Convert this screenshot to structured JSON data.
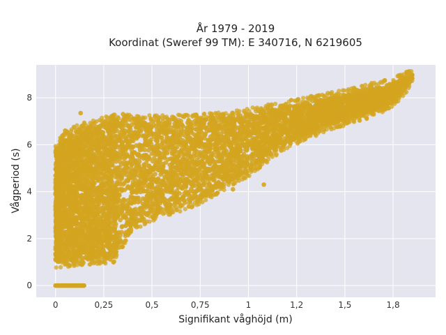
{
  "chart_data": {
    "type": "scatter",
    "title_lines": [
      "År 1979 - 2019",
      "Koordinat (Sweref 99 TM): E 340716, N 6219605"
    ],
    "xlabel": "Signifikant våghöjd (m)",
    "ylabel": "Vågperiod (s)",
    "xlim": [
      -0.1,
      1.97
    ],
    "ylim": [
      -0.5,
      9.4
    ],
    "x_ticks": [
      {
        "value": 0,
        "label": "0"
      },
      {
        "value": 0.25,
        "label": "0,25"
      },
      {
        "value": 0.5,
        "label": "0,5"
      },
      {
        "value": 0.75,
        "label": "0,75"
      },
      {
        "value": 1,
        "label": "1"
      },
      {
        "value": 1.25,
        "label": "1,2"
      },
      {
        "value": 1.5,
        "label": "1,5"
      },
      {
        "value": 1.75,
        "label": "1,8"
      }
    ],
    "y_ticks": [
      {
        "value": 0,
        "label": "0"
      },
      {
        "value": 2,
        "label": "2"
      },
      {
        "value": 4,
        "label": "4"
      },
      {
        "value": 6,
        "label": "6"
      },
      {
        "value": 8,
        "label": "8"
      }
    ],
    "grid": true,
    "marker_color": "#D4A520",
    "background_color": "#E5E5EF",
    "envelope": {
      "upper": [
        [
          0.0,
          5.8
        ],
        [
          0.05,
          6.3
        ],
        [
          0.1,
          6.6
        ],
        [
          0.2,
          6.8
        ],
        [
          0.3,
          7.05
        ],
        [
          0.5,
          7.0
        ],
        [
          0.75,
          7.05
        ],
        [
          1.0,
          7.3
        ],
        [
          1.25,
          7.7
        ],
        [
          1.5,
          8.1
        ],
        [
          1.75,
          8.6
        ],
        [
          1.85,
          9.0
        ]
      ],
      "lower": [
        [
          0.0,
          1.0
        ],
        [
          0.3,
          1.2
        ],
        [
          0.4,
          2.6
        ],
        [
          0.5,
          3.0
        ],
        [
          0.75,
          3.7
        ],
        [
          1.0,
          4.9
        ],
        [
          1.2,
          6.1
        ],
        [
          1.4,
          6.8
        ],
        [
          1.6,
          7.3
        ],
        [
          1.75,
          7.8
        ],
        [
          1.85,
          8.8
        ]
      ]
    },
    "zero_band": {
      "y": 0,
      "x_min": 0.0,
      "x_max": 0.15
    },
    "outliers": [
      {
        "x": 0.13,
        "y": 7.35
      },
      {
        "x": 0.05,
        "y": 6.6
      },
      {
        "x": 0.19,
        "y": 1.75
      },
      {
        "x": 0.35,
        "y": 7.3
      },
      {
        "x": 0.58,
        "y": 7.1
      },
      {
        "x": 0.74,
        "y": 4.3
      },
      {
        "x": 0.92,
        "y": 4.1
      },
      {
        "x": 1.08,
        "y": 4.3
      },
      {
        "x": 1.12,
        "y": 6.3
      },
      {
        "x": 1.27,
        "y": 6.3
      },
      {
        "x": 1.55,
        "y": 7.4
      },
      {
        "x": 1.82,
        "y": 9.05
      }
    ]
  }
}
